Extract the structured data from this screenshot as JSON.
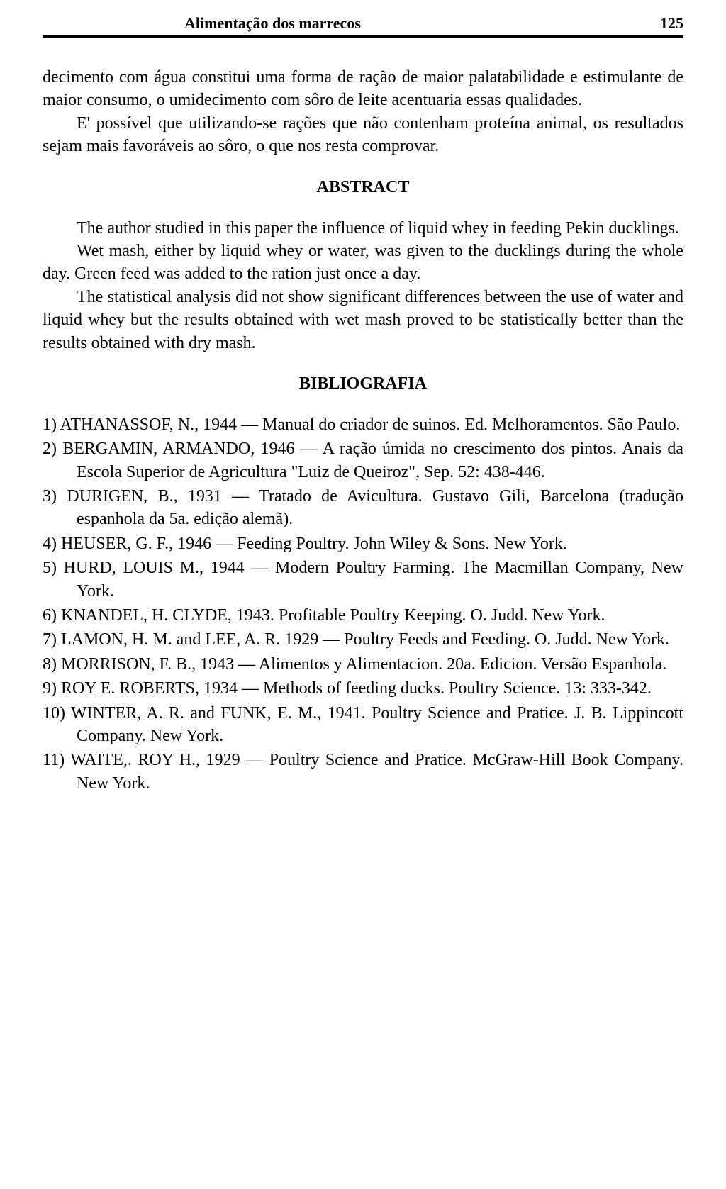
{
  "header": {
    "title": "Alimentação dos marrecos",
    "page_number": "125"
  },
  "body": {
    "paragraphs": [
      "decimento com água constitui uma forma de ração de maior palatabilidade e estimulante de maior consumo, o umidecimento com sôro de leite acentuaria essas qualidades.",
      "E' possível que utilizando-se rações que não contenham proteína animal, os resultados sejam mais favoráveis ao sôro, o que nos resta comprovar."
    ]
  },
  "abstract": {
    "heading": "ABSTRACT",
    "paragraphs": [
      "The author studied in this paper the influence of liquid whey in feeding Pekin ducklings.",
      "Wet mash, either by liquid whey or water, was given to the ducklings during the whole day. Green feed was added to the ration just once a day.",
      "The statistical analysis did not show significant differences between the use of water and liquid whey but the results obtained with wet mash proved to be statistically better than the results obtained with dry mash."
    ]
  },
  "bibliography": {
    "heading": "BIBLIOGRAFIA",
    "items": [
      "1) ATHANASSOF, N., 1944 — Manual do criador de suinos. Ed. Melhoramentos. São Paulo.",
      "2) BERGAMIN, ARMANDO, 1946 — A ração úmida no crescimento dos pintos. Anais da Escola Superior de Agricultura \"Luiz de Queiroz\", Sep. 52: 438-446.",
      "3) DURIGEN, B., 1931 — Tratado de Avicultura. Gustavo Gili, Barcelona (tradução espanhola da 5a. edição alemã).",
      "4) HEUSER, G. F., 1946 — Feeding Poultry. John Wiley & Sons. New York.",
      "5) HURD, LOUIS M., 1944 — Modern Poultry Farming. The Macmillan Company, New York.",
      "6) KNANDEL, H. CLYDE, 1943. Profitable Poultry Keeping. O. Judd. New York.",
      "7) LAMON, H. M. and LEE, A. R. 1929 — Poultry Feeds and Feeding. O. Judd. New York.",
      "8) MORRISON, F. B., 1943 — Alimentos y Alimentacion. 20a. Edicion. Versão Espanhola.",
      "9) ROY E. ROBERTS, 1934 — Methods of feeding ducks. Poultry Science. 13: 333-342.",
      "10) WINTER, A. R. and FUNK, E. M., 1941. Poultry Science and Pratice. J. B. Lippincott Company. New York.",
      "11) WAITE,. ROY H., 1929 — Poultry Science and Pratice. McGraw-Hill Book Company. New York."
    ]
  },
  "styling": {
    "background_color": "#ffffff",
    "text_color": "#000000",
    "rule_color": "#000000",
    "body_fontsize": 24,
    "header_fontsize": 22,
    "font_family": "Georgia, Times New Roman, serif"
  }
}
